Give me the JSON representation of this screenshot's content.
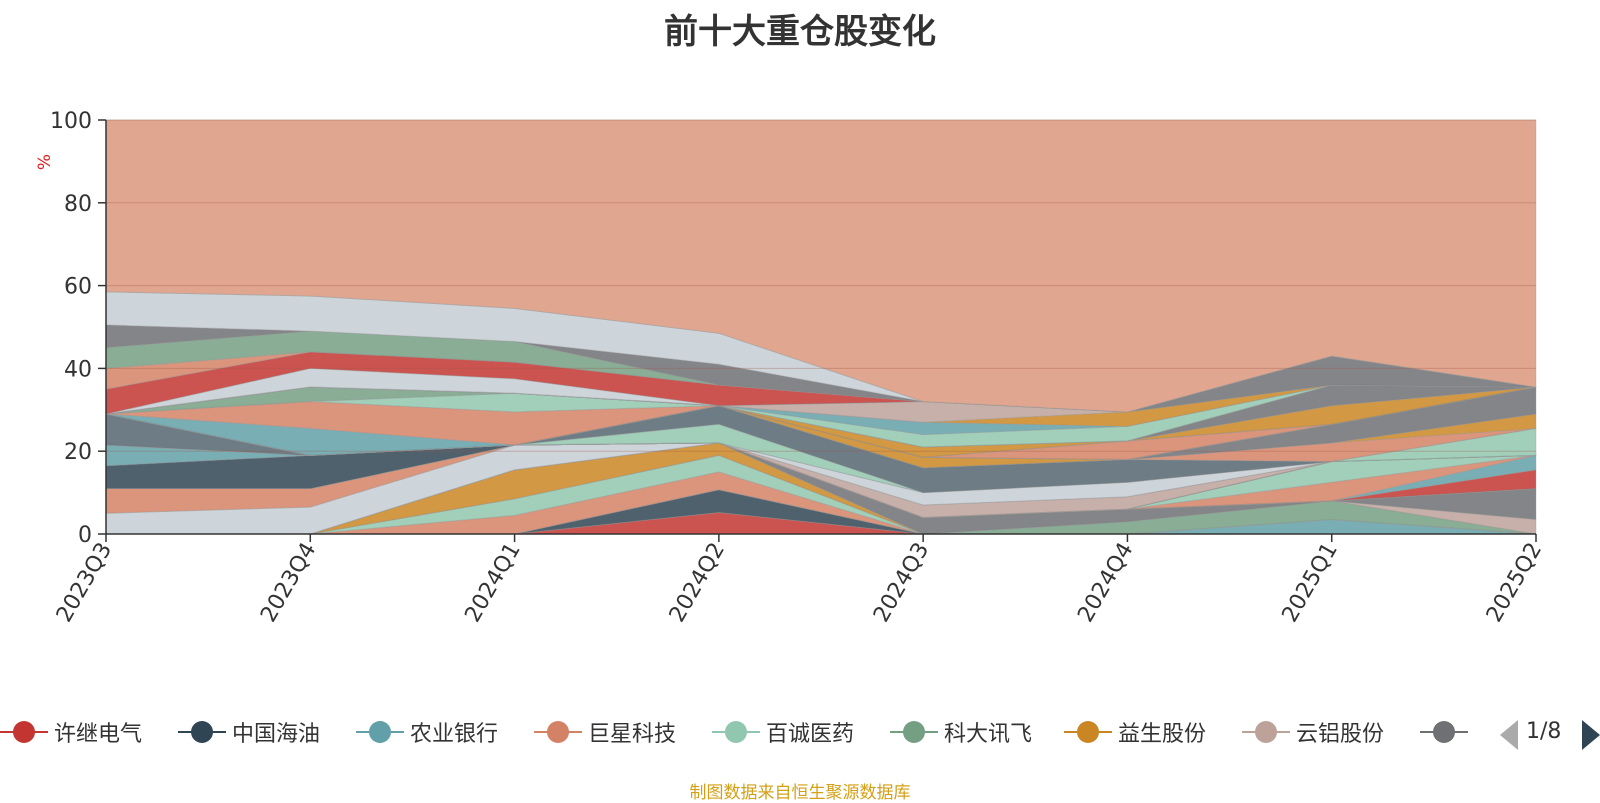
{
  "title": "前十大重仓股变化",
  "source_note": "制图数据来自恒生聚源数据库",
  "legend": {
    "items": [
      {
        "label": "许继电气",
        "color": "#c23531"
      },
      {
        "label": "中国海油",
        "color": "#2f4554"
      },
      {
        "label": "农业银行",
        "color": "#61a0a8"
      },
      {
        "label": "巨星科技",
        "color": "#d48265"
      },
      {
        "label": "百诚医药",
        "color": "#91c7ae"
      },
      {
        "label": "科大讯飞",
        "color": "#749f83"
      },
      {
        "label": "益生股份",
        "color": "#ca8622"
      },
      {
        "label": "云铝股份",
        "color": "#bda29a"
      },
      {
        "label": "",
        "color": "#6e7074"
      }
    ],
    "page_indicator": "1/8"
  },
  "chart_data": {
    "type": "area",
    "stacked": true,
    "title": "前十大重仓股变化",
    "ylabel": "%",
    "ylim": [
      0,
      100
    ],
    "yticks": [
      0,
      20,
      40,
      60,
      80,
      100
    ],
    "grid": true,
    "legend_position": "bottom",
    "categories": [
      "2023Q3",
      "2023Q4",
      "2024Q1",
      "2024Q2",
      "2024Q3",
      "2024Q4",
      "2025Q1",
      "2025Q2"
    ],
    "series": [
      {
        "name": "",
        "color": "#c23531",
        "values": [
          0,
          0,
          0,
          5.2,
          0,
          0,
          0,
          0
        ]
      },
      {
        "name": "",
        "color": "#2f4554",
        "values": [
          0,
          0,
          0,
          5.5,
          0,
          0,
          0,
          0
        ]
      },
      {
        "name": "",
        "color": "#61a0a8",
        "values": [
          0,
          0,
          0,
          0,
          0,
          0,
          3.5,
          0
        ]
      },
      {
        "name": "",
        "color": "#d48265",
        "values": [
          0,
          0,
          4.5,
          4.3,
          0,
          0,
          0,
          0
        ]
      },
      {
        "name": "",
        "color": "#91c7ae",
        "values": [
          0,
          0,
          4.0,
          4.0,
          0,
          0,
          0,
          0
        ]
      },
      {
        "name": "",
        "color": "#749f83",
        "values": [
          0,
          0,
          0,
          0,
          0,
          3.0,
          4.5,
          0
        ]
      },
      {
        "name": "",
        "color": "#ca8622",
        "values": [
          0,
          0,
          7.0,
          3.0,
          0,
          0,
          0,
          0
        ]
      },
      {
        "name": "",
        "color": "#bda29a",
        "values": [
          0,
          0,
          0,
          0,
          0,
          0,
          0,
          3.5
        ]
      },
      {
        "name": "",
        "color": "#6e7074",
        "values": [
          0,
          0,
          0,
          0,
          4.0,
          3.0,
          0,
          7.5
        ]
      },
      {
        "name": "",
        "color": "#546570",
        "values": [
          0,
          0,
          0,
          0,
          0,
          0,
          0,
          0
        ]
      },
      {
        "name": "",
        "color": "#c4ccd3",
        "values": [
          5.0,
          6.5,
          6.0,
          0,
          0,
          0,
          0,
          0
        ]
      },
      {
        "name": "",
        "color": "#d48265",
        "values": [
          6.0,
          4.5,
          0,
          0,
          0,
          0,
          0,
          0
        ]
      },
      {
        "name": "",
        "color": "#2f4554",
        "values": [
          0,
          0,
          0,
          0,
          0,
          0,
          0,
          0
        ]
      },
      {
        "name": "",
        "color": "#c23531",
        "values": [
          0,
          0,
          0,
          0,
          0,
          0,
          0,
          4.5
        ]
      },
      {
        "name": "",
        "color": "#61a0a8",
        "values": [
          0,
          0,
          0,
          0,
          0,
          0,
          0,
          3.5
        ]
      },
      {
        "name": "",
        "color": "#d48265",
        "values": [
          0,
          0,
          0,
          0,
          0,
          0,
          4.5,
          0
        ]
      },
      {
        "name": "",
        "color": "#91c7ae",
        "values": [
          0,
          0,
          0,
          0,
          0,
          0,
          5.0,
          0
        ]
      },
      {
        "name": "",
        "color": "#ca8622",
        "values": [
          0,
          0,
          0,
          0,
          0,
          0,
          0,
          0
        ]
      },
      {
        "name": "",
        "color": "#bda29a",
        "values": [
          0,
          0,
          0,
          0,
          0,
          0,
          0,
          0
        ]
      },
      {
        "name": "",
        "color": "#6e7074",
        "values": [
          0,
          0,
          0,
          0,
          0,
          0,
          0,
          0
        ]
      },
      {
        "name": "",
        "color": "#546570",
        "values": [
          0,
          0,
          0,
          0,
          0,
          0,
          0,
          0
        ]
      },
      {
        "name": "",
        "color": "#2f4554",
        "values": [
          5.5,
          8.0,
          0,
          0,
          0,
          0,
          0,
          0
        ]
      },
      {
        "name": "",
        "color": "#61a0a8",
        "values": [
          5.0,
          0,
          0,
          0,
          0,
          0,
          0,
          0
        ]
      },
      {
        "name": "",
        "color": "#bda29a",
        "values": [
          0,
          0,
          0,
          0,
          3.0,
          3.0,
          0,
          0
        ]
      },
      {
        "name": "",
        "color": "#749f83",
        "values": [
          0,
          0,
          0,
          0,
          0,
          0,
          0,
          0
        ]
      },
      {
        "name": "",
        "color": "#c4ccd3",
        "values": [
          0,
          0,
          0,
          0,
          3.0,
          3.5,
          0,
          0
        ]
      },
      {
        "name": "",
        "color": "#ca8622",
        "values": [
          0,
          0,
          0,
          0,
          0,
          0,
          0,
          0
        ]
      },
      {
        "name": "",
        "color": "#91c7ae",
        "values": [
          0,
          0,
          0,
          4.5,
          0,
          0,
          0,
          6.5
        ]
      },
      {
        "name": "",
        "color": "#546570",
        "values": [
          7.5,
          0,
          0,
          4.5,
          6.0,
          5.5,
          0,
          0
        ]
      },
      {
        "name": "",
        "color": "#d48265",
        "values": [
          0,
          0,
          0,
          0,
          0,
          0,
          4.5,
          0
        ]
      },
      {
        "name": "",
        "color": "#ca8622",
        "values": [
          0,
          0,
          0,
          0,
          2.5,
          0,
          0,
          3.5
        ]
      },
      {
        "name": "",
        "color": "#749f83",
        "values": [
          0,
          0,
          0,
          0,
          0,
          0,
          0,
          0
        ]
      },
      {
        "name": "",
        "color": "#6e7074",
        "values": [
          0,
          0,
          0,
          0,
          0,
          0,
          4.5,
          6.5
        ]
      },
      {
        "name": "",
        "color": "#c4ccd3",
        "values": [
          0,
          0,
          0,
          0,
          0,
          0,
          0,
          0
        ]
      },
      {
        "name": "",
        "color": "#61a0a8",
        "values": [
          0,
          6.5,
          0,
          0,
          0,
          0,
          0,
          0
        ]
      },
      {
        "name": "",
        "color": "#d48265",
        "values": [
          0,
          6.5,
          8.0,
          0,
          0,
          4.5,
          0,
          0
        ]
      },
      {
        "name": "",
        "color": "#91c7ae",
        "values": [
          0,
          0,
          4.5,
          0,
          0,
          0,
          0,
          0
        ]
      },
      {
        "name": "",
        "color": "#749f83",
        "values": [
          0,
          3.5,
          0,
          0,
          0,
          0,
          0,
          0
        ]
      },
      {
        "name": "",
        "color": "#ca8622",
        "values": [
          0,
          0,
          0,
          0,
          2.5,
          0,
          4.5,
          0
        ]
      },
      {
        "name": "",
        "color": "#bda29a",
        "values": [
          0,
          0,
          0,
          0,
          0,
          0,
          0,
          0
        ]
      },
      {
        "name": "",
        "color": "#6e7074",
        "values": [
          0,
          0,
          0,
          0,
          0,
          0,
          5.0,
          0
        ]
      },
      {
        "name": "",
        "color": "#546570",
        "values": [
          0,
          0,
          0,
          0,
          0,
          0,
          0,
          0
        ]
      },
      {
        "name": "",
        "color": "#91c7ae",
        "values": [
          0,
          0,
          0,
          0,
          3.0,
          3.5,
          0,
          0
        ]
      },
      {
        "name": "",
        "color": "#61a0a8",
        "values": [
          0,
          0,
          0,
          0,
          3.0,
          0,
          0,
          0
        ]
      },
      {
        "name": "",
        "color": "#ca8622",
        "values": [
          0,
          0,
          0,
          0,
          0,
          3.5,
          0,
          0
        ]
      },
      {
        "name": "",
        "color": "#bda29a",
        "values": [
          0,
          0,
          0,
          0,
          5.0,
          0,
          0,
          0
        ]
      },
      {
        "name": "",
        "color": "#6e7074",
        "values": [
          0,
          0,
          0,
          0,
          0,
          0,
          7.0,
          0
        ]
      },
      {
        "name": "",
        "color": "#c4ccd3",
        "values": [
          0,
          4.5,
          3.5,
          0,
          0,
          0,
          0,
          0
        ]
      },
      {
        "name": "",
        "color": "#c23531",
        "values": [
          6.0,
          4.0,
          4.0,
          5.0,
          0,
          0,
          0,
          0
        ]
      },
      {
        "name": "",
        "color": "#d48265",
        "values": [
          5.0,
          0,
          0,
          0,
          0,
          0,
          0,
          0
        ]
      },
      {
        "name": "",
        "color": "#749f83",
        "values": [
          5.0,
          5.0,
          5.0,
          0,
          0,
          0,
          0,
          0
        ]
      },
      {
        "name": "",
        "color": "#6e7074",
        "values": [
          5.5,
          0,
          0,
          5.0,
          0,
          0,
          0,
          0
        ]
      },
      {
        "name": "",
        "color": "#c4ccd3",
        "values": [
          8.0,
          8.5,
          8.0,
          7.5,
          0,
          0,
          0,
          0
        ]
      },
      {
        "name": "",
        "color": "#546570",
        "values": [
          0,
          0,
          0,
          0,
          0,
          0,
          0,
          0
        ]
      }
    ],
    "remainder": {
      "color": "#e0a690"
    }
  }
}
